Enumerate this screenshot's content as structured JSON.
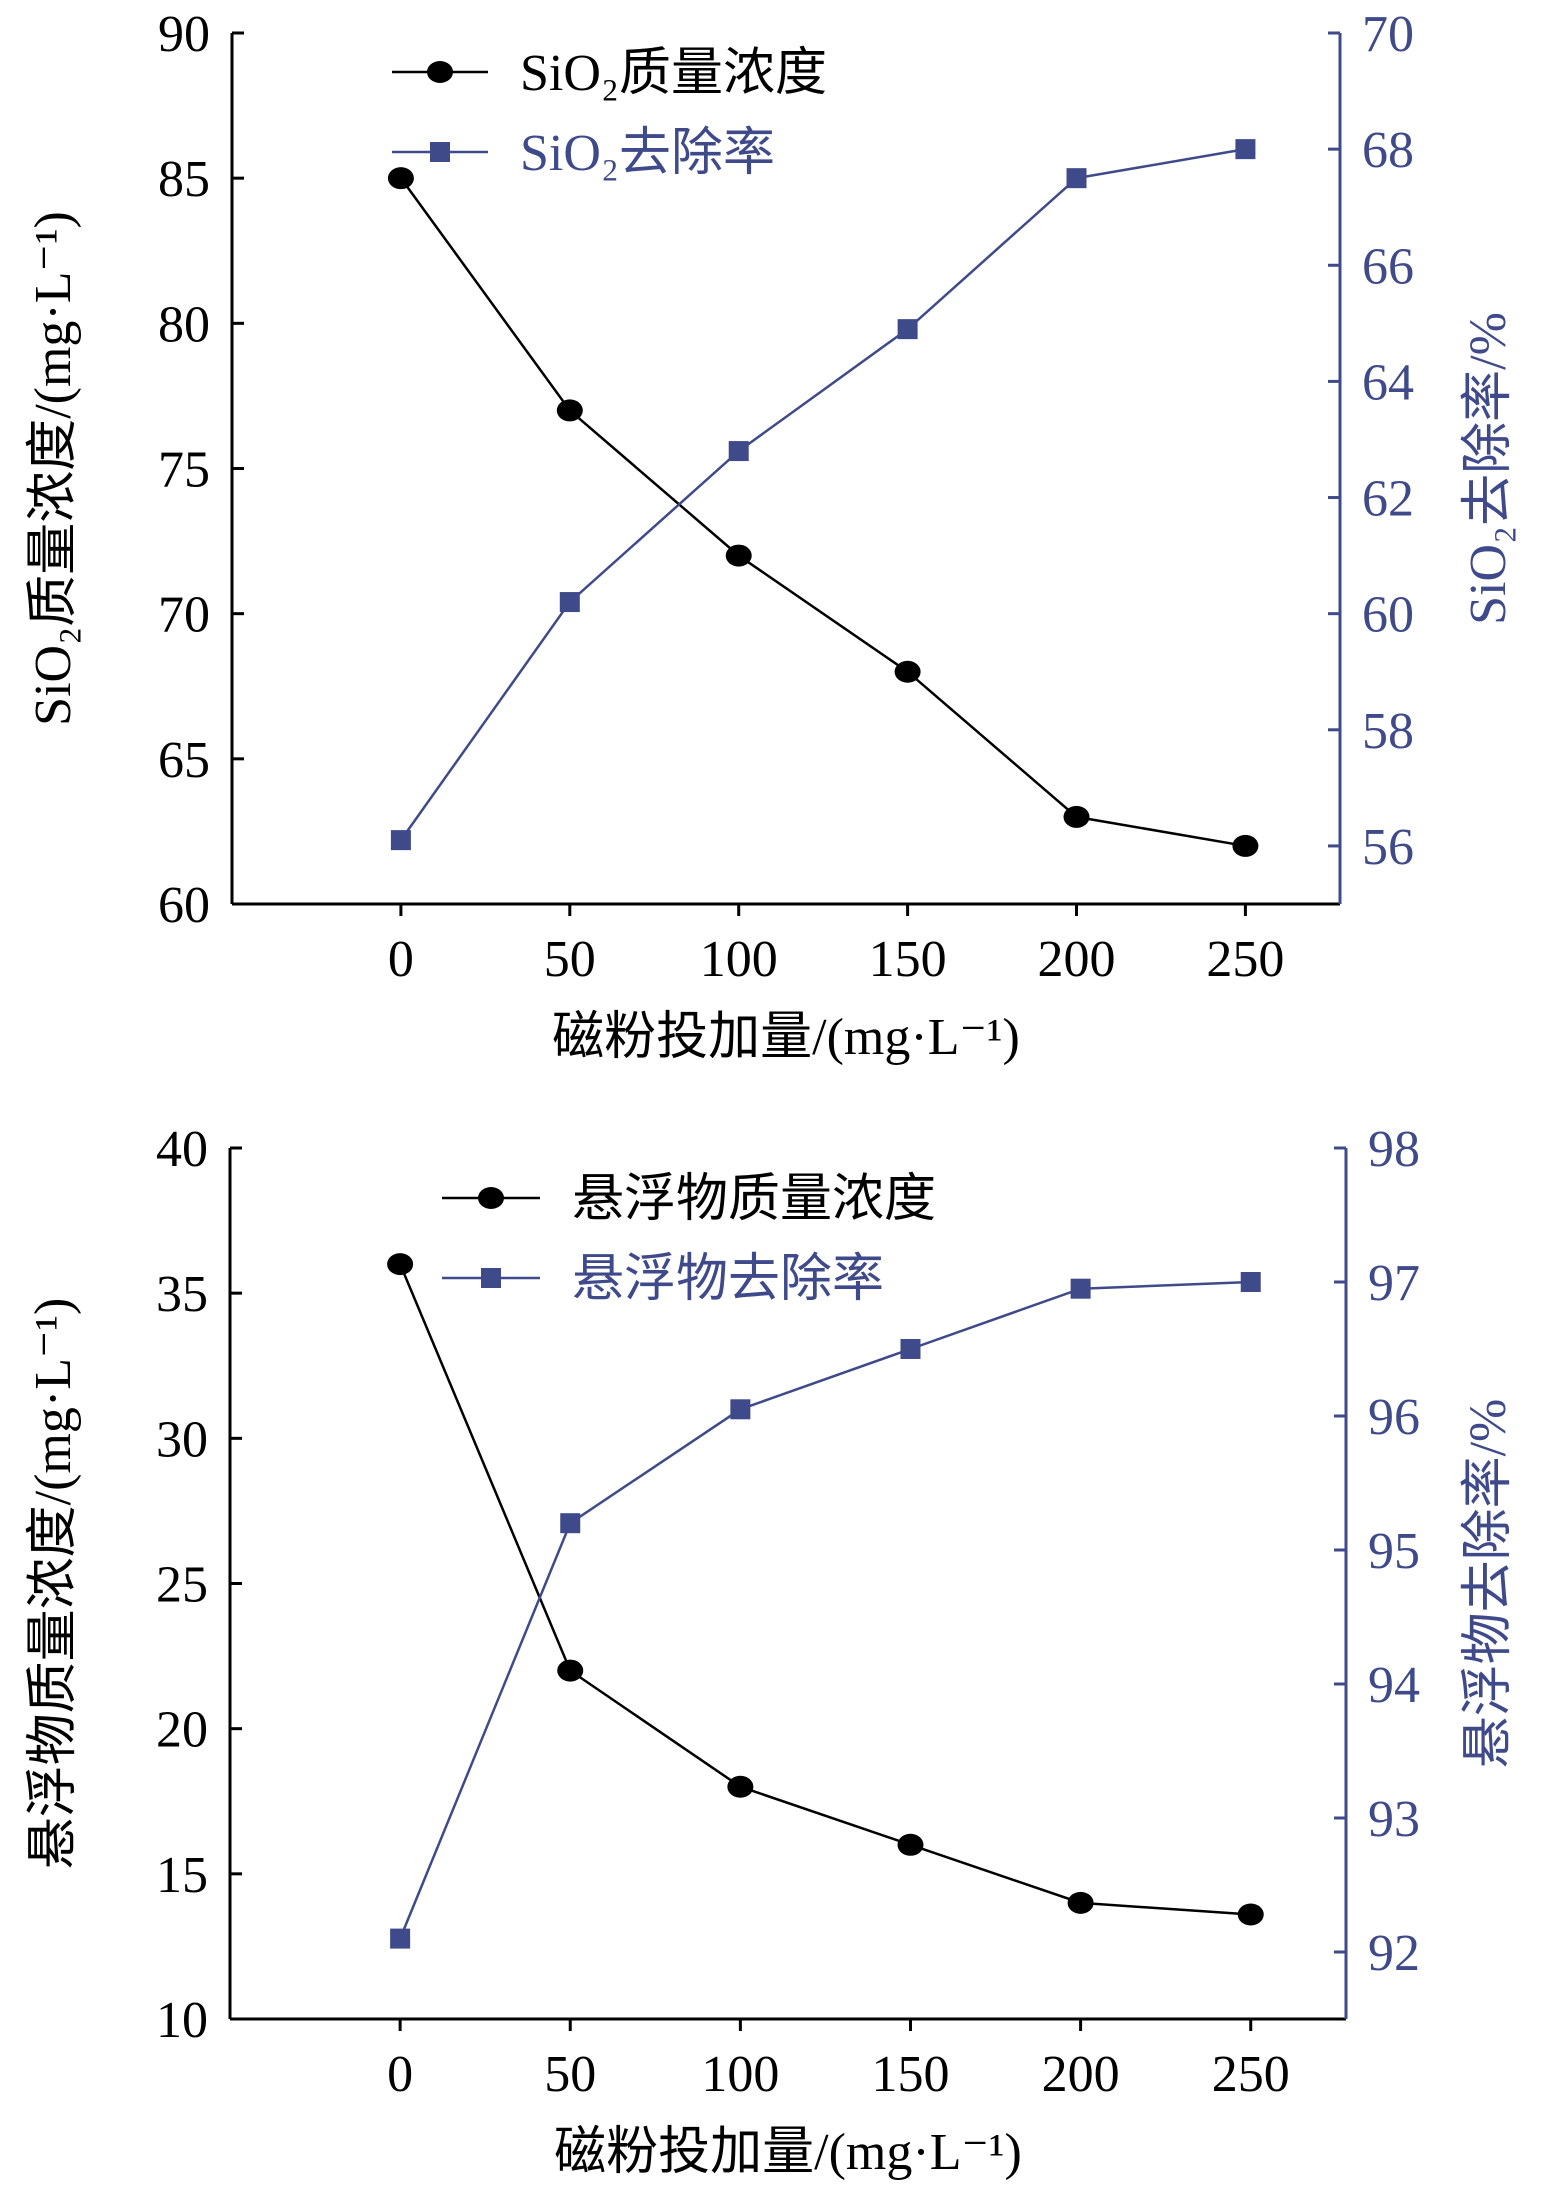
{
  "chart_data": [
    {
      "type": "line",
      "xlabel": "磁粉投加量/(mg·L⁻¹)",
      "x": [
        0,
        50,
        100,
        150,
        200,
        250
      ],
      "x_ticks": [
        "0",
        "50",
        "100",
        "150",
        "200",
        "250"
      ],
      "xlim": [
        -50,
        278
      ],
      "ylabel_left": "SiO₂质量浓度/(mg·L⁻¹)",
      "ylabel_right": "SiO₂去除率/%",
      "ylim_left": [
        60,
        90
      ],
      "ylim_right": [
        55,
        70
      ],
      "yticks_left": [
        "60",
        "65",
        "70",
        "75",
        "80",
        "85",
        "90"
      ],
      "yticks_right": [
        "56",
        "58",
        "60",
        "62",
        "64",
        "66",
        "68",
        "70"
      ],
      "legend_position": "top-left",
      "grid": false,
      "series": [
        {
          "name": "SiO₂质量浓度",
          "axis": "left",
          "marker": "circle",
          "color": "#000000",
          "values": [
            85,
            77,
            72,
            68,
            63,
            62
          ]
        },
        {
          "name": "SiO₂去除率",
          "axis": "right",
          "marker": "square",
          "color": "#3f4a8a",
          "values": [
            56.1,
            60.2,
            62.8,
            64.9,
            67.5,
            68.0
          ]
        }
      ]
    },
    {
      "type": "line",
      "xlabel": "磁粉投加量/(mg·L⁻¹)",
      "x": [
        0,
        50,
        100,
        150,
        200,
        250
      ],
      "x_ticks": [
        "0",
        "50",
        "100",
        "150",
        "200",
        "250"
      ],
      "xlim": [
        -50,
        278
      ],
      "ylabel_left": "悬浮物质量浓度/(mg·L⁻¹)",
      "ylabel_right": "悬浮物去除率/%",
      "ylim_left": [
        10,
        40
      ],
      "ylim_right": [
        91.5,
        98
      ],
      "yticks_left": [
        "10",
        "15",
        "20",
        "25",
        "30",
        "35",
        "40"
      ],
      "yticks_right": [
        "92",
        "93",
        "94",
        "95",
        "96",
        "97",
        "98"
      ],
      "legend_position": "top-center",
      "grid": false,
      "series": [
        {
          "name": "悬浮物质量浓度",
          "axis": "left",
          "marker": "circle",
          "color": "#000000",
          "values": [
            36,
            22,
            18,
            16,
            14,
            13.6
          ]
        },
        {
          "name": "悬浮物去除率",
          "axis": "right",
          "marker": "square",
          "color": "#3f4a8a",
          "values": [
            92.1,
            95.2,
            96.05,
            96.5,
            96.95,
            97.0
          ]
        }
      ]
    }
  ]
}
